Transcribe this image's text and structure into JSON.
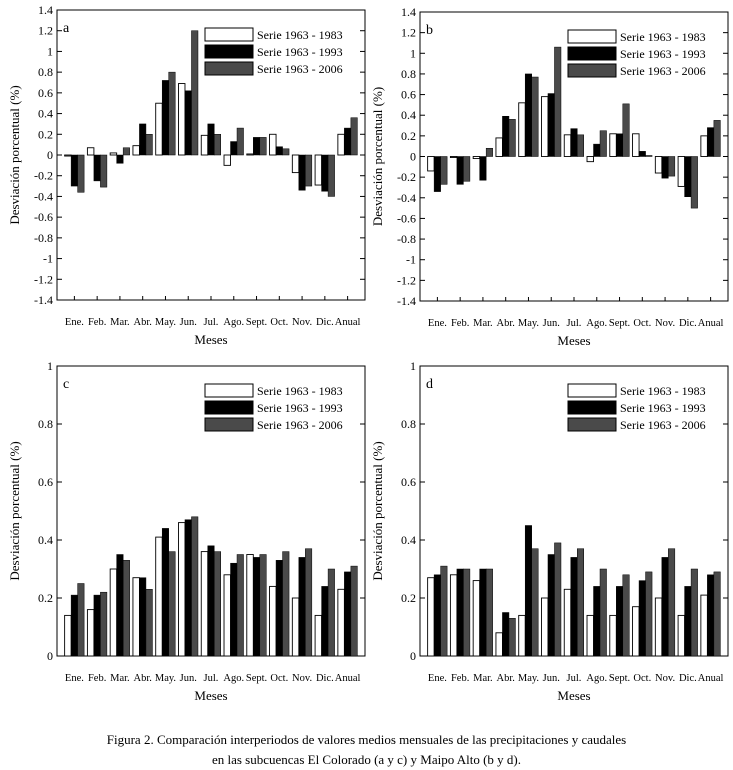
{
  "caption": {
    "line1": "Figura 2. Comparación interperiodos de valores medios mensuales de las precipitaciones y caudales",
    "line2": "en las subcuencas El Colorado (a y c) y Maipo Alto (b y d)."
  },
  "colors": {
    "series": [
      "#ffffff",
      "#000000",
      "#4a4a4a"
    ]
  },
  "chart_data": [
    {
      "type": "bar",
      "panel_label": "a",
      "title": "",
      "xlabel": "Meses",
      "ylabel": "Desviación porcentual (%)",
      "ylim": [
        -1.4,
        1.4
      ],
      "yticks": [
        -1.4,
        -1.2,
        -1,
        -0.8,
        -0.6,
        -0.4,
        -0.2,
        0,
        0.2,
        0.4,
        0.6,
        0.8,
        1,
        1.2,
        1.4
      ],
      "ytick_labels": [
        "-1.4",
        "-1.2",
        "-1",
        "-0.8",
        "-0.6",
        "-0.4",
        "-0.2",
        "0",
        "0.2",
        "0.4",
        "0.6",
        "0.8",
        "1",
        "1.2",
        "1.4"
      ],
      "categories": [
        "Ene.",
        "Feb.",
        "Mar.",
        "Abr.",
        "May.",
        "Jun.",
        "Jul.",
        "Ago.",
        "Sept.",
        "Oct.",
        "Nov.",
        "Dic.",
        "Anual"
      ],
      "series": [
        {
          "name": "Serie 1963 - 1983",
          "values": [
            -0.01,
            0.07,
            0.02,
            0.09,
            0.5,
            0.69,
            0.19,
            -0.1,
            0.01,
            0.2,
            -0.17,
            -0.29,
            0.2
          ]
        },
        {
          "name": "Serie 1963 - 1993",
          "values": [
            -0.3,
            -0.25,
            -0.08,
            0.3,
            0.72,
            0.62,
            0.3,
            0.13,
            0.17,
            0.08,
            -0.34,
            -0.35,
            0.26
          ]
        },
        {
          "name": "Serie 1963 - 2006",
          "values": [
            -0.36,
            -0.31,
            0.07,
            0.2,
            0.8,
            1.2,
            0.2,
            0.26,
            0.17,
            0.06,
            -0.3,
            -0.4,
            0.36
          ]
        }
      ]
    },
    {
      "type": "bar",
      "panel_label": "b",
      "title": "",
      "xlabel": "Meses",
      "ylabel": "Desviación porcentual (%)",
      "ylim": [
        -1.4,
        1.4
      ],
      "yticks": [
        -1.4,
        -1.2,
        -1,
        -0.8,
        -0.6,
        -0.4,
        -0.2,
        0,
        0.2,
        0.4,
        0.6,
        0.8,
        1,
        1.2,
        1.4
      ],
      "ytick_labels": [
        "-1.4",
        "-1.2",
        "-1",
        "-0.8",
        "-0.6",
        "-0.4",
        "-0.2",
        "0",
        "0.2",
        "0.4",
        "0.6",
        "0.8",
        "1",
        "1.2",
        "1.4"
      ],
      "categories": [
        "Ene.",
        "Feb.",
        "Mar.",
        "Abr.",
        "May.",
        "Jun.",
        "Jul.",
        "Ago.",
        "Sept.",
        "Oct.",
        "Nov.",
        "Dic.",
        "Anual"
      ],
      "series": [
        {
          "name": "Serie 1963 - 1983",
          "values": [
            -0.14,
            -0.01,
            -0.02,
            0.18,
            0.52,
            0.58,
            0.21,
            -0.05,
            0.22,
            0.22,
            -0.16,
            -0.29,
            0.2
          ]
        },
        {
          "name": "Serie 1963 - 1993",
          "values": [
            -0.34,
            -0.27,
            -0.23,
            0.39,
            0.8,
            0.61,
            0.27,
            0.12,
            0.22,
            0.05,
            -0.21,
            -0.39,
            0.28
          ]
        },
        {
          "name": "Serie 1963 - 2006",
          "values": [
            -0.27,
            -0.24,
            0.08,
            0.36,
            0.77,
            1.06,
            0.21,
            0.25,
            0.51,
            0.01,
            -0.19,
            -0.5,
            0.35
          ]
        }
      ]
    },
    {
      "type": "bar",
      "panel_label": "c",
      "title": "",
      "xlabel": "Meses",
      "ylabel": "Desviación porcentual (%)",
      "ylim": [
        0,
        1
      ],
      "yticks": [
        0,
        0.2,
        0.4,
        0.6,
        0.8,
        1
      ],
      "ytick_labels": [
        "0",
        "0.2",
        "0.4",
        "0.6",
        "0.8",
        "1"
      ],
      "categories": [
        "Ene.",
        "Feb.",
        "Mar.",
        "Abr.",
        "May.",
        "Jun.",
        "Jul.",
        "Ago.",
        "Sept.",
        "Oct.",
        "Nov.",
        "Dic.",
        "Anual"
      ],
      "series": [
        {
          "name": "Serie 1963 - 1983",
          "values": [
            0.14,
            0.16,
            0.3,
            0.27,
            0.41,
            0.46,
            0.36,
            0.28,
            0.35,
            0.24,
            0.2,
            0.14,
            0.23
          ]
        },
        {
          "name": "Serie 1963 - 1993",
          "values": [
            0.21,
            0.21,
            0.35,
            0.27,
            0.44,
            0.47,
            0.38,
            0.32,
            0.34,
            0.33,
            0.34,
            0.24,
            0.29
          ]
        },
        {
          "name": "Serie 1963 - 2006",
          "values": [
            0.25,
            0.22,
            0.33,
            0.23,
            0.36,
            0.48,
            0.36,
            0.35,
            0.35,
            0.36,
            0.37,
            0.3,
            0.31
          ]
        }
      ]
    },
    {
      "type": "bar",
      "panel_label": "d",
      "title": "",
      "xlabel": "Meses",
      "ylabel": "Desviación porcentual (%)",
      "ylim": [
        0,
        1
      ],
      "yticks": [
        0,
        0.2,
        0.4,
        0.6,
        0.8,
        1
      ],
      "ytick_labels": [
        "0",
        "0.2",
        "0.4",
        "0.6",
        "0.8",
        "1"
      ],
      "categories": [
        "Ene.",
        "Feb.",
        "Mar.",
        "Abr.",
        "May.",
        "Jun.",
        "Jul.",
        "Ago.",
        "Sept.",
        "Oct.",
        "Nov.",
        "Dic.",
        "Anual"
      ],
      "series": [
        {
          "name": "Serie 1963 - 1983",
          "values": [
            0.27,
            0.28,
            0.26,
            0.08,
            0.14,
            0.2,
            0.23,
            0.14,
            0.14,
            0.17,
            0.2,
            0.14,
            0.21
          ]
        },
        {
          "name": "Serie 1963 - 1993",
          "values": [
            0.28,
            0.3,
            0.3,
            0.15,
            0.45,
            0.35,
            0.34,
            0.24,
            0.24,
            0.26,
            0.34,
            0.24,
            0.28
          ]
        },
        {
          "name": "Serie 1963 - 2006",
          "values": [
            0.31,
            0.3,
            0.3,
            0.13,
            0.37,
            0.39,
            0.37,
            0.3,
            0.28,
            0.29,
            0.37,
            0.3,
            0.29
          ]
        }
      ]
    }
  ]
}
